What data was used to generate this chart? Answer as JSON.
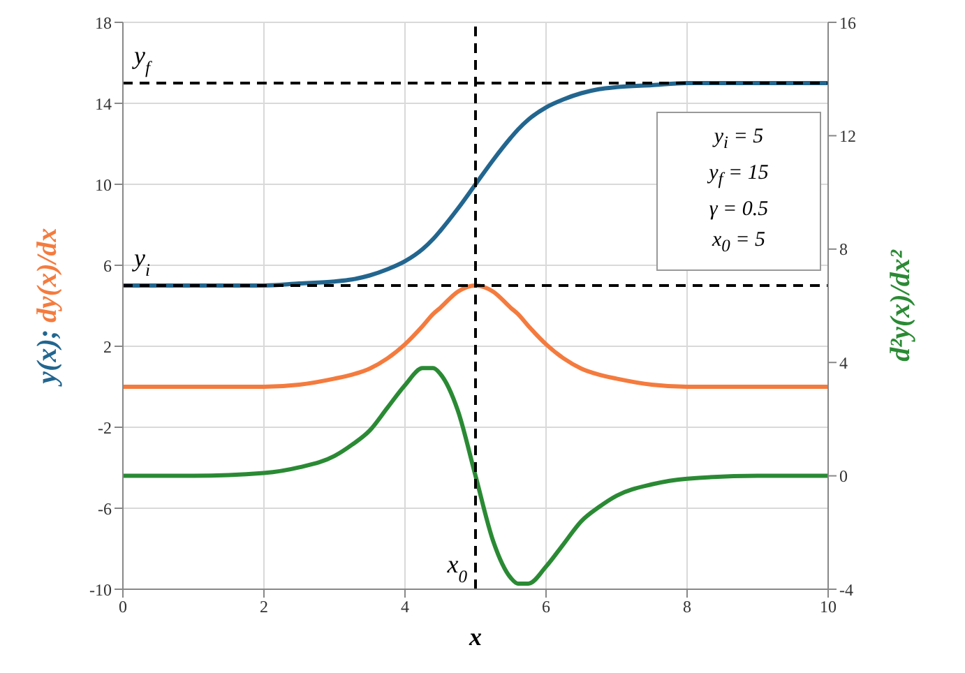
{
  "chart_data": {
    "type": "line",
    "xlabel": "x",
    "ylabel": "y(x); dy(x)/dx",
    "y2label": "d²y(x)/dx²",
    "x": [
      0,
      1,
      2,
      2.5,
      3,
      3.25,
      3.5,
      3.75,
      4,
      4.25,
      4.4,
      4.5,
      4.75,
      5,
      5.25,
      5.5,
      5.6,
      5.75,
      6,
      6.25,
      6.5,
      6.75,
      7,
      7.5,
      8,
      9,
      10
    ],
    "series": [
      {
        "color": "#22668f",
        "values": [
          5.0,
          5.0,
          5.0,
          5.1,
          5.2,
          5.3,
          5.5,
          5.8,
          6.2,
          6.8,
          7.3,
          7.7,
          8.8,
          10,
          11.2,
          12.3,
          12.7,
          13.2,
          13.8,
          14.2,
          14.5,
          14.7,
          14.8,
          14.9,
          15.0,
          15.0,
          15.0
        ]
      },
      {
        "color": "#f47b3e",
        "values": [
          0,
          0,
          0,
          0.1,
          0.4,
          0.6,
          0.9,
          1.4,
          2.1,
          3.0,
          3.6,
          3.9,
          4.7,
          5,
          4.7,
          3.9,
          3.6,
          3.0,
          2.1,
          1.4,
          0.9,
          0.6,
          0.4,
          0.1,
          0,
          0,
          0
        ]
      },
      {
        "color": "#2a8a34",
        "axis": "y2",
        "values": [
          0,
          0,
          0.1,
          0.3,
          0.7,
          1.1,
          1.6,
          2.4,
          3.2,
          3.8,
          3.8,
          3.6,
          2.3,
          0,
          -2.3,
          -3.6,
          -3.8,
          -3.8,
          -3.2,
          -2.4,
          -1.6,
          -1.1,
          -0.7,
          -0.3,
          -0.1,
          0,
          0
        ]
      }
    ],
    "xlim": [
      0,
      10
    ],
    "xticks": [
      0,
      2,
      4,
      6,
      8,
      10
    ],
    "ylim": [
      -10,
      18
    ],
    "yticks": [
      -10,
      -6,
      -2,
      2,
      6,
      10,
      14,
      18
    ],
    "y2lim": [
      -4,
      16
    ],
    "y2ticks": [
      -4,
      0,
      4,
      8,
      12,
      16
    ],
    "ref_lines": [
      {
        "axis": "y",
        "value": 15,
        "label": "y$_{f}$",
        "color": "#000000",
        "line_style": "dashed"
      },
      {
        "axis": "y",
        "value": 5,
        "label": "y$_{i}$",
        "color": "#000000",
        "line_style": "dashed"
      },
      {
        "axis": "x",
        "value": 5,
        "label": "x$_{0}$",
        "color": "#000000",
        "line_style": "dashed"
      }
    ],
    "annotations": [
      "y$_{i}$ = 5",
      "y$_{f}$ = 15",
      "γ = 0.5",
      "x$_{0}$ = 5"
    ],
    "grid": true,
    "line_style": "solid"
  }
}
